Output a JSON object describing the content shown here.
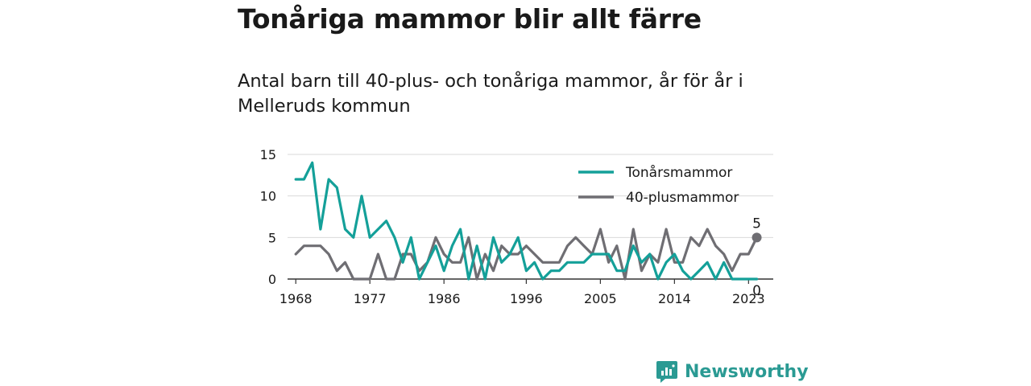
{
  "title": "Tonåriga mammor blir allt färre",
  "subtitle": "Antal barn till 40-plus- och tonåriga mammor, år för år i Melleruds kommun",
  "brand": {
    "name": "Newsworthy",
    "color": "#2a9a93"
  },
  "chart_data": {
    "type": "line",
    "title": "Tonåriga mammor blir allt färre",
    "subtitle": "Antal barn till 40-plus- och tonåriga mammor, år för år i Melleruds kommun",
    "xlabel": "",
    "ylabel": "",
    "xlim": [
      1967,
      2026
    ],
    "ylim": [
      0,
      15
    ],
    "grid": "horizontal",
    "legend_position": "top-right",
    "x_ticks": [
      1968,
      1977,
      1986,
      1996,
      2005,
      2014,
      2023
    ],
    "y_ticks": [
      0,
      5,
      10,
      15
    ],
    "x": [
      1968,
      1969,
      1970,
      1971,
      1972,
      1973,
      1974,
      1975,
      1976,
      1977,
      1978,
      1979,
      1980,
      1981,
      1982,
      1983,
      1984,
      1985,
      1986,
      1987,
      1988,
      1989,
      1990,
      1991,
      1992,
      1993,
      1994,
      1995,
      1996,
      1997,
      1998,
      1999,
      2000,
      2001,
      2002,
      2003,
      2004,
      2005,
      2006,
      2007,
      2008,
      2009,
      2010,
      2011,
      2012,
      2013,
      2014,
      2015,
      2016,
      2017,
      2018,
      2019,
      2020,
      2021,
      2022,
      2023,
      2024
    ],
    "series": [
      {
        "name": "Tonårsmammor",
        "color": "#14a099",
        "values": [
          12,
          12,
          14,
          6,
          12,
          11,
          6,
          5,
          10,
          5,
          6,
          7,
          5,
          2,
          5,
          0,
          2,
          4,
          1,
          4,
          6,
          0,
          4,
          0,
          5,
          2,
          3,
          5,
          1,
          2,
          0,
          1,
          1,
          2,
          2,
          2,
          3,
          3,
          3,
          1,
          1,
          4,
          2,
          3,
          0,
          2,
          3,
          1,
          0,
          1,
          2,
          0,
          2,
          0,
          0,
          0,
          0
        ],
        "end_label": "0"
      },
      {
        "name": "40-plusmammor",
        "color": "#6f6e73",
        "values": [
          3,
          4,
          4,
          4,
          3,
          1,
          2,
          0,
          0,
          0,
          3,
          0,
          0,
          3,
          3,
          1,
          2,
          5,
          3,
          2,
          2,
          5,
          0,
          3,
          1,
          4,
          3,
          3,
          4,
          3,
          2,
          2,
          2,
          4,
          5,
          4,
          3,
          6,
          2,
          4,
          0,
          6,
          1,
          3,
          2,
          6,
          2,
          2,
          5,
          4,
          6,
          4,
          3,
          1,
          3,
          3,
          5
        ],
        "end_label": "5"
      }
    ]
  }
}
